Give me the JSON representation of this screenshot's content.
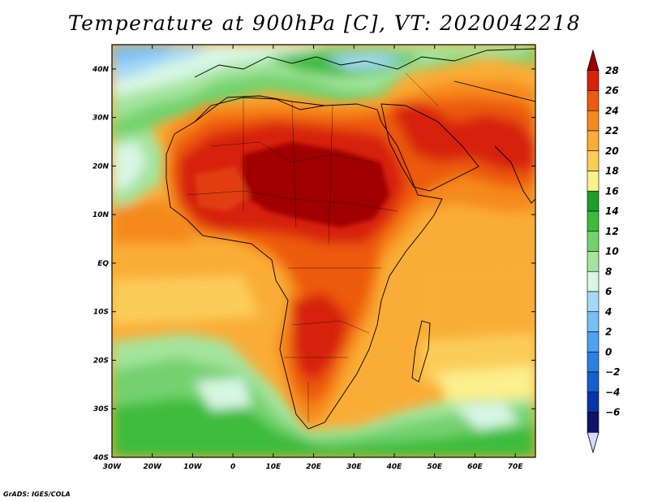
{
  "title": "Temperature at 900hPa [C], VT: 2020042218",
  "credit": "GrADS: IGES/COLA",
  "map": {
    "lon_range": [
      -30,
      75
    ],
    "lat_range": [
      -40,
      45
    ],
    "lon_labels": [
      "30W",
      "20W",
      "10W",
      "0",
      "10E",
      "20E",
      "30E",
      "40E",
      "50E",
      "60E",
      "70E"
    ],
    "lat_labels": [
      "40N",
      "30N",
      "20N",
      "10N",
      "EQ",
      "10S",
      "20S",
      "30S",
      "40S"
    ]
  },
  "colorbar": {
    "labels": [
      "28",
      "26",
      "24",
      "22",
      "20",
      "18",
      "16",
      "14",
      "12",
      "10",
      "8",
      "6",
      "4",
      "2",
      "0",
      "−2",
      "−4",
      "−6"
    ],
    "colors": [
      "#a00000",
      "#d62408",
      "#ec5a10",
      "#f5891e",
      "#f9ad38",
      "#fbcd58",
      "#fbf08c",
      "#1e9e28",
      "#3cbc3c",
      "#73d26e",
      "#a4e49c",
      "#d8f6e4",
      "#a6d8f6",
      "#78bff5",
      "#4fa2ee",
      "#2a80e0",
      "#165ed0",
      "#0a35a8",
      "#0e1468",
      "#d8d8ff"
    ]
  }
}
